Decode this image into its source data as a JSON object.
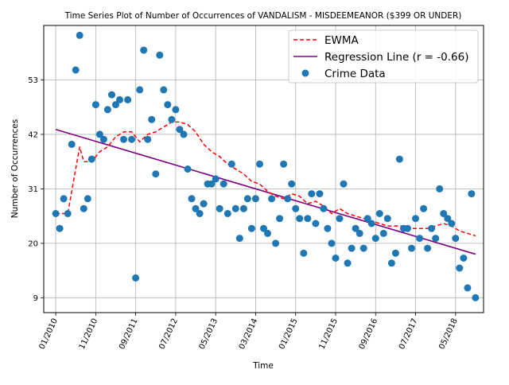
{
  "chart_data": {
    "type": "scatter",
    "title": "Time Series Plot of Number of Occurrences of VANDALISM - MISDEEMEANOR ($399 OR UNDER)",
    "xlabel": "Time",
    "ylabel": "Number of Occurrences",
    "x_ticks": [
      "01/2010",
      "11/2010",
      "09/2011",
      "07/2012",
      "05/2013",
      "03/2014",
      "01/2015",
      "11/2015",
      "09/2016",
      "07/2017",
      "05/2018"
    ],
    "y_ticks": [
      9,
      20,
      31,
      42,
      53
    ],
    "xlim": [
      "2009-10",
      "2018-12"
    ],
    "ylim": [
      6,
      64
    ],
    "grid": true,
    "legend_position": "top-right",
    "legend": {
      "ewma": "EWMA",
      "regression": "Regression Line (r = -0.66)",
      "points": "Crime Data"
    },
    "colors": {
      "points": "#1f77b4",
      "ewma": "#ff0000",
      "regression": "#800080"
    },
    "series": [
      {
        "name": "Crime Data",
        "x": [
          "2010-01",
          "2010-02",
          "2010-03",
          "2010-04",
          "2010-05",
          "2010-06",
          "2010-07",
          "2010-08",
          "2010-09",
          "2010-10",
          "2010-11",
          "2010-12",
          "2011-01",
          "2011-02",
          "2011-03",
          "2011-04",
          "2011-05",
          "2011-06",
          "2011-07",
          "2011-08",
          "2011-09",
          "2011-10",
          "2011-11",
          "2011-12",
          "2012-01",
          "2012-02",
          "2012-03",
          "2012-04",
          "2012-05",
          "2012-06",
          "2012-07",
          "2012-08",
          "2012-09",
          "2012-10",
          "2012-11",
          "2012-12",
          "2013-01",
          "2013-02",
          "2013-03",
          "2013-04",
          "2013-05",
          "2013-06",
          "2013-07",
          "2013-08",
          "2013-09",
          "2013-10",
          "2013-11",
          "2013-12",
          "2014-01",
          "2014-02",
          "2014-03",
          "2014-04",
          "2014-05",
          "2014-06",
          "2014-07",
          "2014-08",
          "2014-09",
          "2014-10",
          "2014-11",
          "2014-12",
          "2015-01",
          "2015-02",
          "2015-03",
          "2015-04",
          "2015-05",
          "2015-06",
          "2015-07",
          "2015-08",
          "2015-09",
          "2015-10",
          "2015-11",
          "2015-12",
          "2016-01",
          "2016-02",
          "2016-03",
          "2016-04",
          "2016-05",
          "2016-06",
          "2016-07",
          "2016-08",
          "2016-09",
          "2016-10",
          "2016-11",
          "2016-12",
          "2017-01",
          "2017-02",
          "2017-03",
          "2017-04",
          "2017-05",
          "2017-06",
          "2017-07",
          "2017-08",
          "2017-09",
          "2017-10",
          "2017-11",
          "2017-12",
          "2018-01",
          "2018-02",
          "2018-03",
          "2018-04",
          "2018-05",
          "2018-06",
          "2018-07",
          "2018-08",
          "2018-09",
          "2018-10"
        ],
        "values": [
          26,
          23,
          29,
          26,
          40,
          55,
          62,
          27,
          29,
          37,
          48,
          42,
          41,
          47,
          50,
          48,
          49,
          41,
          49,
          41,
          13,
          51,
          59,
          41,
          45,
          34,
          58,
          51,
          48,
          45,
          47,
          43,
          42,
          35,
          29,
          27,
          26,
          28,
          32,
          32,
          33,
          27,
          32,
          26,
          36,
          27,
          21,
          27,
          29,
          23,
          29,
          36,
          23,
          22,
          29,
          20,
          25,
          36,
          29,
          32,
          27,
          25,
          18,
          25,
          30,
          24,
          30,
          27,
          23,
          20,
          17,
          25,
          32,
          16,
          19,
          23,
          22,
          19,
          25,
          24,
          21,
          26,
          22,
          25,
          16,
          18,
          37,
          23,
          23,
          19,
          25,
          21,
          27,
          19,
          23,
          21,
          31,
          26,
          25,
          24,
          21,
          15,
          17,
          11,
          30,
          9
        ]
      },
      {
        "name": "EWMA",
        "x": [
          "2010-01",
          "2010-04",
          "2010-07",
          "2010-08",
          "2010-10",
          "2010-12",
          "2011-02",
          "2011-04",
          "2011-06",
          "2011-08",
          "2011-10",
          "2011-12",
          "2012-02",
          "2012-04",
          "2012-06",
          "2012-08",
          "2012-10",
          "2012-12",
          "2013-02",
          "2013-04",
          "2013-06",
          "2013-08",
          "2013-10",
          "2013-12",
          "2014-02",
          "2014-04",
          "2014-06",
          "2014-08",
          "2014-10",
          "2014-12",
          "2015-02",
          "2015-04",
          "2015-06",
          "2015-08",
          "2015-10",
          "2015-12",
          "2016-02",
          "2016-04",
          "2016-06",
          "2016-08",
          "2016-10",
          "2016-12",
          "2017-02",
          "2017-04",
          "2017-06",
          "2017-08",
          "2017-10",
          "2017-12",
          "2018-02",
          "2018-04",
          "2018-06",
          "2018-08",
          "2018-10"
        ],
        "values": [
          26,
          26,
          39.5,
          36.5,
          36.5,
          38.5,
          39.5,
          41.5,
          42.5,
          42.5,
          40.5,
          42,
          42.5,
          43.5,
          44.5,
          44.5,
          44,
          42.5,
          40,
          38.5,
          37.5,
          36,
          35,
          34,
          32.5,
          32,
          30.5,
          29.5,
          29,
          30,
          29.5,
          28,
          28.5,
          27.5,
          26,
          27,
          26,
          25.5,
          25,
          24.5,
          24,
          23.5,
          23.5,
          23.5,
          23,
          23,
          23,
          23.5,
          24,
          23.5,
          22.5,
          22,
          21.5
        ]
      },
      {
        "name": "Regression Line (r = -0.66)",
        "x": [
          "2010-01",
          "2018-10"
        ],
        "values": [
          43,
          17.8
        ]
      }
    ]
  }
}
